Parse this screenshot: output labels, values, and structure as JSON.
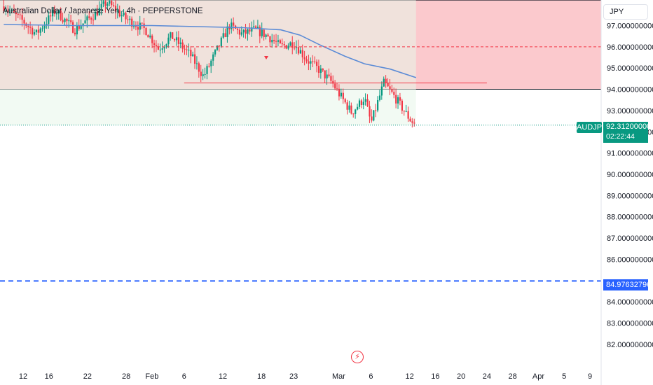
{
  "header": {
    "title": "Australian Dollar / Japanese Yen · 4h · PEPPERSTONE",
    "currency_button": "JPY"
  },
  "price_tags": {
    "symbol": "AUDJPY",
    "last_price": "92.312000000",
    "countdown": "02:22:44",
    "target_price": "84.976327960"
  },
  "icons": {
    "flash": "lightning-icon"
  },
  "colors": {
    "up": "#089981",
    "down": "#f23645",
    "ma": "#5b8bd6",
    "zone_red": "#fbc9cd",
    "zone_green": "#e8f5e9",
    "target_line": "#2962ff"
  },
  "chart_data": {
    "type": "candlestick",
    "instrument": "AUDJPY",
    "timeframe": "4h",
    "y_axis": {
      "range": [
        81.5,
        98.2
      ],
      "ticks": [
        "97.000000000",
        "96.000000000",
        "95.000000000",
        "94.000000000",
        "93.000000000",
        "92.000000000",
        "91.000000000",
        "90.000000000",
        "89.000000000",
        "88.000000000",
        "87.000000000",
        "86.000000000",
        "85.000000000",
        "84.000000000",
        "83.000000000",
        "82.000000000"
      ]
    },
    "x_axis": {
      "ticks": [
        {
          "date": "2024-01-12",
          "label": "12"
        },
        {
          "date": "2024-01-16",
          "label": "16"
        },
        {
          "date": "2024-01-22",
          "label": "22"
        },
        {
          "date": "2024-01-28",
          "label": "28"
        },
        {
          "date": "2024-02-01",
          "label": "Feb"
        },
        {
          "date": "2024-02-06",
          "label": "6"
        },
        {
          "date": "2024-02-12",
          "label": "12"
        },
        {
          "date": "2024-02-18",
          "label": "18"
        },
        {
          "date": "2024-02-23",
          "label": "23"
        },
        {
          "date": "2024-03-01",
          "label": "Mar"
        },
        {
          "date": "2024-03-06",
          "label": "6"
        },
        {
          "date": "2024-03-12",
          "label": "12"
        },
        {
          "date": "2024-03-16",
          "label": "16"
        },
        {
          "date": "2024-03-20",
          "label": "20"
        },
        {
          "date": "2024-03-24",
          "label": "24"
        },
        {
          "date": "2024-03-28",
          "label": "28"
        },
        {
          "date": "2024-04-01",
          "label": "Apr"
        },
        {
          "date": "2024-04-05",
          "label": "5"
        },
        {
          "date": "2024-04-09",
          "label": "9"
        }
      ]
    },
    "series_close": [
      {
        "date": "2024-01-09",
        "close": 97.9
      },
      {
        "date": "2024-01-12",
        "close": 97.2
      },
      {
        "date": "2024-01-14",
        "close": 96.6
      },
      {
        "date": "2024-01-17",
        "close": 97.7
      },
      {
        "date": "2024-01-20",
        "close": 96.8
      },
      {
        "date": "2024-01-23",
        "close": 97.5
      },
      {
        "date": "2024-01-25",
        "close": 98.1
      },
      {
        "date": "2024-01-28",
        "close": 97.3
      },
      {
        "date": "2024-01-31",
        "close": 96.8
      },
      {
        "date": "2024-02-02",
        "close": 95.9
      },
      {
        "date": "2024-02-04",
        "close": 96.5
      },
      {
        "date": "2024-02-07",
        "close": 95.6
      },
      {
        "date": "2024-02-09",
        "close": 94.6
      },
      {
        "date": "2024-02-11",
        "close": 95.8
      },
      {
        "date": "2024-02-13",
        "close": 97.0
      },
      {
        "date": "2024-02-15",
        "close": 96.6
      },
      {
        "date": "2024-02-17",
        "close": 96.8
      },
      {
        "date": "2024-02-19",
        "close": 96.5
      },
      {
        "date": "2024-02-21",
        "close": 96.0
      },
      {
        "date": "2024-02-23",
        "close": 96.2
      },
      {
        "date": "2024-02-25",
        "close": 95.4
      },
      {
        "date": "2024-02-27",
        "close": 94.9
      },
      {
        "date": "2024-02-29",
        "close": 94.3
      },
      {
        "date": "2024-03-01",
        "close": 93.8
      },
      {
        "date": "2024-03-03",
        "close": 92.9
      },
      {
        "date": "2024-03-05",
        "close": 93.6
      },
      {
        "date": "2024-03-06",
        "close": 92.4
      },
      {
        "date": "2024-03-08",
        "close": 94.3
      },
      {
        "date": "2024-03-10",
        "close": 93.5
      },
      {
        "date": "2024-03-12",
        "close": 92.6
      },
      {
        "date": "2024-03-13",
        "close": 92.31
      }
    ],
    "moving_average": [
      {
        "date": "2024-01-09",
        "value": 97.05
      },
      {
        "date": "2024-01-20",
        "value": 97.0
      },
      {
        "date": "2024-02-01",
        "value": 97.0
      },
      {
        "date": "2024-02-08",
        "value": 96.95
      },
      {
        "date": "2024-02-15",
        "value": 96.9
      },
      {
        "date": "2024-02-21",
        "value": 96.8
      },
      {
        "date": "2024-02-24",
        "value": 96.55
      },
      {
        "date": "2024-02-27",
        "value": 96.1
      },
      {
        "date": "2024-03-02",
        "value": 95.55
      },
      {
        "date": "2024-03-05",
        "value": 95.2
      },
      {
        "date": "2024-03-09",
        "value": 94.95
      },
      {
        "date": "2024-03-13",
        "value": 94.55
      }
    ],
    "zones": {
      "resistance": {
        "from": 94.0,
        "to": 98.2
      },
      "history_shade_end": "2024-03-13"
    },
    "levels": {
      "dashed_mid": 96.0,
      "support_line": {
        "value": 94.3,
        "from": "2024-02-06",
        "to": "2024-03-24"
      },
      "last_price": 92.312,
      "target": 84.97632796
    }
  }
}
